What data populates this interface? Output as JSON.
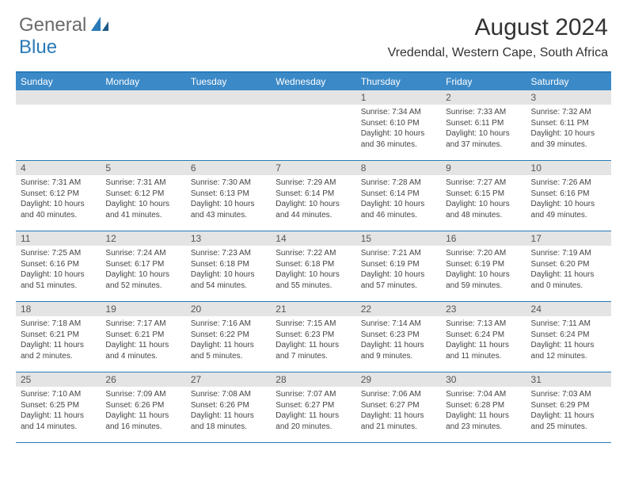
{
  "logo": {
    "part1": "General",
    "part2": "Blue"
  },
  "title": "August 2024",
  "location": "Vredendal, Western Cape, South Africa",
  "colors": {
    "header_bg": "#3b89c7",
    "border": "#2a7ab8",
    "daynum_bg": "#e4e4e4",
    "text": "#333333"
  },
  "weekdays": [
    "Sunday",
    "Monday",
    "Tuesday",
    "Wednesday",
    "Thursday",
    "Friday",
    "Saturday"
  ],
  "weeks": [
    [
      null,
      null,
      null,
      null,
      {
        "n": "1",
        "sr": "Sunrise: 7:34 AM",
        "ss": "Sunset: 6:10 PM",
        "dl": "Daylight: 10 hours and 36 minutes."
      },
      {
        "n": "2",
        "sr": "Sunrise: 7:33 AM",
        "ss": "Sunset: 6:11 PM",
        "dl": "Daylight: 10 hours and 37 minutes."
      },
      {
        "n": "3",
        "sr": "Sunrise: 7:32 AM",
        "ss": "Sunset: 6:11 PM",
        "dl": "Daylight: 10 hours and 39 minutes."
      }
    ],
    [
      {
        "n": "4",
        "sr": "Sunrise: 7:31 AM",
        "ss": "Sunset: 6:12 PM",
        "dl": "Daylight: 10 hours and 40 minutes."
      },
      {
        "n": "5",
        "sr": "Sunrise: 7:31 AM",
        "ss": "Sunset: 6:12 PM",
        "dl": "Daylight: 10 hours and 41 minutes."
      },
      {
        "n": "6",
        "sr": "Sunrise: 7:30 AM",
        "ss": "Sunset: 6:13 PM",
        "dl": "Daylight: 10 hours and 43 minutes."
      },
      {
        "n": "7",
        "sr": "Sunrise: 7:29 AM",
        "ss": "Sunset: 6:14 PM",
        "dl": "Daylight: 10 hours and 44 minutes."
      },
      {
        "n": "8",
        "sr": "Sunrise: 7:28 AM",
        "ss": "Sunset: 6:14 PM",
        "dl": "Daylight: 10 hours and 46 minutes."
      },
      {
        "n": "9",
        "sr": "Sunrise: 7:27 AM",
        "ss": "Sunset: 6:15 PM",
        "dl": "Daylight: 10 hours and 48 minutes."
      },
      {
        "n": "10",
        "sr": "Sunrise: 7:26 AM",
        "ss": "Sunset: 6:16 PM",
        "dl": "Daylight: 10 hours and 49 minutes."
      }
    ],
    [
      {
        "n": "11",
        "sr": "Sunrise: 7:25 AM",
        "ss": "Sunset: 6:16 PM",
        "dl": "Daylight: 10 hours and 51 minutes."
      },
      {
        "n": "12",
        "sr": "Sunrise: 7:24 AM",
        "ss": "Sunset: 6:17 PM",
        "dl": "Daylight: 10 hours and 52 minutes."
      },
      {
        "n": "13",
        "sr": "Sunrise: 7:23 AM",
        "ss": "Sunset: 6:18 PM",
        "dl": "Daylight: 10 hours and 54 minutes."
      },
      {
        "n": "14",
        "sr": "Sunrise: 7:22 AM",
        "ss": "Sunset: 6:18 PM",
        "dl": "Daylight: 10 hours and 55 minutes."
      },
      {
        "n": "15",
        "sr": "Sunrise: 7:21 AM",
        "ss": "Sunset: 6:19 PM",
        "dl": "Daylight: 10 hours and 57 minutes."
      },
      {
        "n": "16",
        "sr": "Sunrise: 7:20 AM",
        "ss": "Sunset: 6:19 PM",
        "dl": "Daylight: 10 hours and 59 minutes."
      },
      {
        "n": "17",
        "sr": "Sunrise: 7:19 AM",
        "ss": "Sunset: 6:20 PM",
        "dl": "Daylight: 11 hours and 0 minutes."
      }
    ],
    [
      {
        "n": "18",
        "sr": "Sunrise: 7:18 AM",
        "ss": "Sunset: 6:21 PM",
        "dl": "Daylight: 11 hours and 2 minutes."
      },
      {
        "n": "19",
        "sr": "Sunrise: 7:17 AM",
        "ss": "Sunset: 6:21 PM",
        "dl": "Daylight: 11 hours and 4 minutes."
      },
      {
        "n": "20",
        "sr": "Sunrise: 7:16 AM",
        "ss": "Sunset: 6:22 PM",
        "dl": "Daylight: 11 hours and 5 minutes."
      },
      {
        "n": "21",
        "sr": "Sunrise: 7:15 AM",
        "ss": "Sunset: 6:23 PM",
        "dl": "Daylight: 11 hours and 7 minutes."
      },
      {
        "n": "22",
        "sr": "Sunrise: 7:14 AM",
        "ss": "Sunset: 6:23 PM",
        "dl": "Daylight: 11 hours and 9 minutes."
      },
      {
        "n": "23",
        "sr": "Sunrise: 7:13 AM",
        "ss": "Sunset: 6:24 PM",
        "dl": "Daylight: 11 hours and 11 minutes."
      },
      {
        "n": "24",
        "sr": "Sunrise: 7:11 AM",
        "ss": "Sunset: 6:24 PM",
        "dl": "Daylight: 11 hours and 12 minutes."
      }
    ],
    [
      {
        "n": "25",
        "sr": "Sunrise: 7:10 AM",
        "ss": "Sunset: 6:25 PM",
        "dl": "Daylight: 11 hours and 14 minutes."
      },
      {
        "n": "26",
        "sr": "Sunrise: 7:09 AM",
        "ss": "Sunset: 6:26 PM",
        "dl": "Daylight: 11 hours and 16 minutes."
      },
      {
        "n": "27",
        "sr": "Sunrise: 7:08 AM",
        "ss": "Sunset: 6:26 PM",
        "dl": "Daylight: 11 hours and 18 minutes."
      },
      {
        "n": "28",
        "sr": "Sunrise: 7:07 AM",
        "ss": "Sunset: 6:27 PM",
        "dl": "Daylight: 11 hours and 20 minutes."
      },
      {
        "n": "29",
        "sr": "Sunrise: 7:06 AM",
        "ss": "Sunset: 6:27 PM",
        "dl": "Daylight: 11 hours and 21 minutes."
      },
      {
        "n": "30",
        "sr": "Sunrise: 7:04 AM",
        "ss": "Sunset: 6:28 PM",
        "dl": "Daylight: 11 hours and 23 minutes."
      },
      {
        "n": "31",
        "sr": "Sunrise: 7:03 AM",
        "ss": "Sunset: 6:29 PM",
        "dl": "Daylight: 11 hours and 25 minutes."
      }
    ]
  ]
}
